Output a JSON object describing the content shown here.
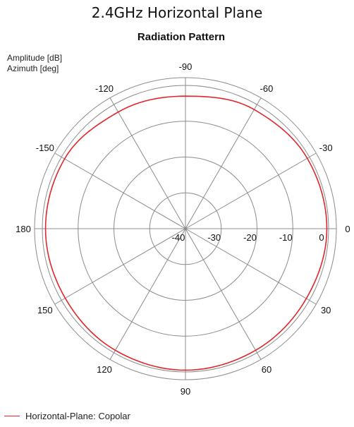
{
  "page": {
    "title": "2.4GHz Horizontal Plane"
  },
  "chart_data": {
    "type": "polar",
    "title": "Radiation Pattern",
    "radial_label": "Amplitude [dB]",
    "angular_label": "Azimuth [deg]",
    "radial_range": [
      -40,
      0
    ],
    "radial_ticks": [
      "-40",
      "-30",
      "-20",
      "-10",
      "0"
    ],
    "angular_ticks": [
      "0",
      "-30",
      "-60",
      "-90",
      "-120",
      "-150",
      "180",
      "150",
      "120",
      "90",
      "60",
      "30"
    ],
    "grid": true,
    "legend_position": "bottom-left",
    "series": [
      {
        "name": "Horizontal-Plane: Copolar",
        "color": "#e0262b",
        "angles": [
          0,
          30,
          60,
          90,
          120,
          150,
          180,
          -150,
          -120,
          -90,
          -60,
          -30,
          0
        ],
        "values": [
          -0.5,
          -1,
          -0.8,
          -0.5,
          -0.8,
          -1.2,
          -0.9,
          -1.0,
          -2.4,
          -3.0,
          -1.6,
          -0.7,
          -0.5
        ]
      }
    ]
  }
}
